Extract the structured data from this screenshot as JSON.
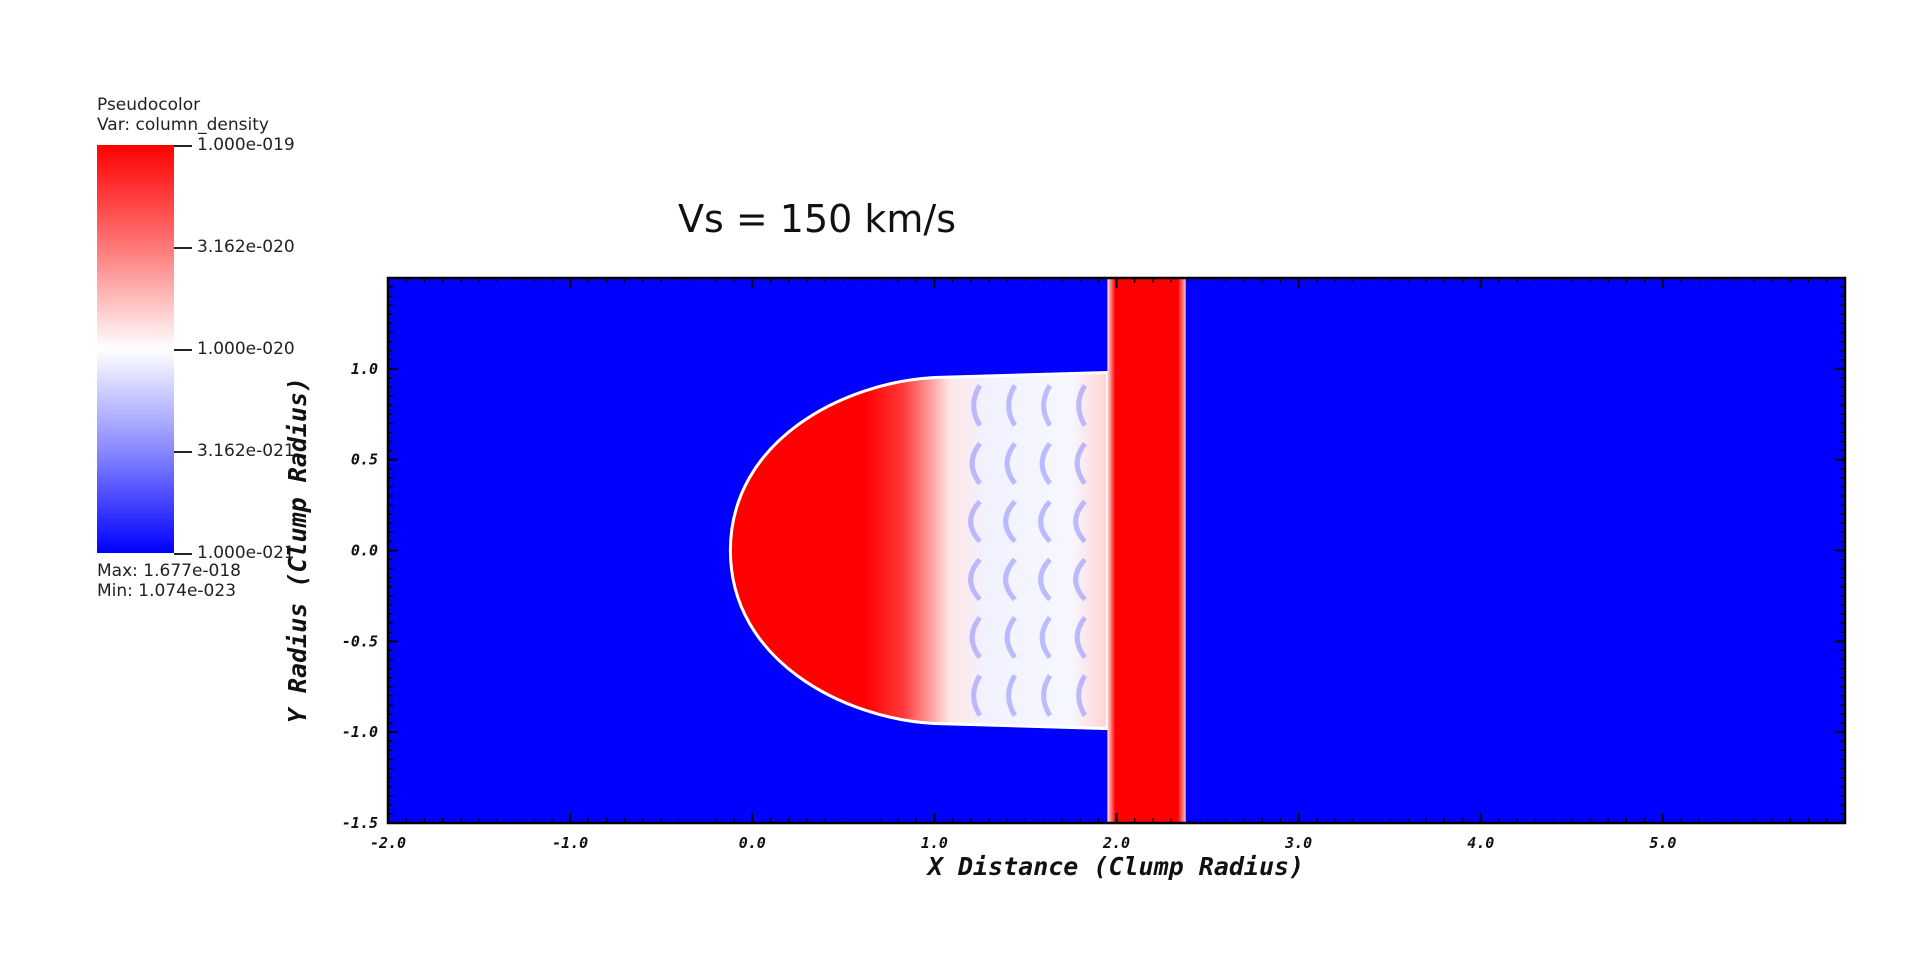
{
  "chart_data": {
    "type": "heatmap",
    "title": "Vs = 150 km/s",
    "xlabel": "X Distance (Clump Radius)",
    "ylabel": "Y Radius (Clump Radius)",
    "xlim": [
      -2.0,
      6.0
    ],
    "ylim": [
      -1.5,
      1.5
    ],
    "x_ticks": [
      "-2.0",
      "-1.0",
      "0.0",
      "1.0",
      "2.0",
      "3.0",
      "4.0",
      "5.0"
    ],
    "y_ticks": [
      "-1.5",
      "-1.0",
      "-0.5",
      "0.0",
      "0.5",
      "1.0"
    ],
    "x_tick_values": [
      -2.0,
      -1.0,
      0.0,
      1.0,
      2.0,
      3.0,
      4.0,
      5.0
    ],
    "y_tick_values": [
      -1.5,
      -1.0,
      -0.5,
      0.0,
      0.5,
      1.0
    ],
    "colorscale": "blue-white-red (log)",
    "features": [
      {
        "name": "clump",
        "x_front": -0.12,
        "x_back": 1.95,
        "y_half_width": 0.98
      },
      {
        "name": "shock-slab",
        "x_min": 1.95,
        "x_max": 2.38,
        "y_min": -1.5,
        "y_max": 1.5
      }
    ],
    "legend": {
      "title": "Pseudocolor",
      "variable": "Var: column_density",
      "tick_labels": [
        "1.000e-019",
        "3.162e-020",
        "1.000e-020",
        "3.162e-021",
        "1.000e-021"
      ],
      "max_label": "Max:  1.677e-018",
      "min_label": "Min:  1.074e-023",
      "colors": [
        "#ff0000",
        "#ff7777",
        "#ffffff",
        "#8888ff",
        "#0000ff"
      ]
    }
  }
}
